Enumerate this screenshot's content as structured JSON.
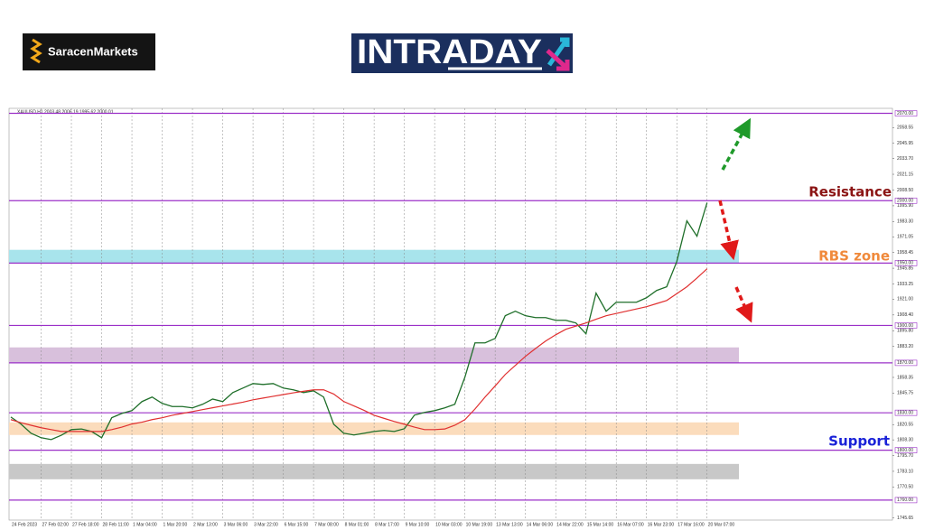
{
  "header": {
    "brand": "SaracenMarkets",
    "banner": "INTRADAY"
  },
  "chart_data": {
    "type": "line",
    "title": "XAUUSD,H1  2003.48 2006.19 1995.62 2000.01",
    "categories": [
      "24 Feb 2023",
      null,
      null,
      "27 Feb 02:00",
      null,
      null,
      "27 Feb 18:00",
      null,
      null,
      "28 Feb 11:00",
      null,
      null,
      "1 Mar 04:00",
      null,
      null,
      "1 Mar 20:00",
      null,
      null,
      "2 Mar 13:00",
      null,
      null,
      "3 Mar 06:00",
      null,
      null,
      "3 Mar 22:00",
      null,
      null,
      "6 Mar 15:00",
      null,
      null,
      "7 Mar 08:00",
      null,
      null,
      "8 Mar 01:00",
      null,
      null,
      "8 Mar 17:00",
      null,
      null,
      "9 Mar 10:00",
      null,
      null,
      "10 Mar 03:00",
      null,
      null,
      "10 Mar 19:00",
      null,
      null,
      "13 Mar 13:00",
      null,
      null,
      "14 Mar 06:00",
      null,
      null,
      "14 Mar 22:00",
      null,
      null,
      "15 Mar 14:00",
      null,
      null,
      "16 Mar 07:00",
      null,
      null,
      "16 Mar 23:00",
      null,
      null,
      "17 Mar 16:00",
      null,
      null,
      "20 Mar 07:00"
    ],
    "series": [
      {
        "color": "#1f6f2a",
        "values": [
          1826.6,
          1821,
          1813.6,
          1810,
          1808.5,
          1812,
          1816.5,
          1817,
          1815,
          1810,
          1826,
          1829.5,
          1831.7,
          1839,
          1842.6,
          1837.5,
          1835,
          1835,
          1833.9,
          1836.8,
          1841,
          1839,
          1846.2,
          1849.8,
          1853.4,
          1852.7,
          1853.4,
          1849.8,
          1848.4,
          1846.2,
          1847.6,
          1842.6,
          1820.8,
          1813.6,
          1812.2,
          1813.6,
          1815,
          1815.8,
          1815,
          1817.2,
          1828.1,
          1830.3,
          1831.7,
          1833.9,
          1836.8,
          1858.5,
          1886,
          1886,
          1889.6,
          1907.8,
          1911.4,
          1907.8,
          1906.3,
          1906.3,
          1904.1,
          1904.1,
          1902,
          1893.3,
          1925.9,
          1911.4,
          1918.6,
          1918.6,
          1918.6,
          1922.2,
          1928,
          1931,
          1951.2,
          1983.8,
          1971.5,
          1998.3
        ]
      },
      {
        "color": "#e03030",
        "values": [
          1824.5,
          1822,
          1820,
          1818,
          1816.5,
          1815,
          1815,
          1815,
          1815,
          1815,
          1816.5,
          1818.5,
          1821,
          1822.5,
          1824.5,
          1826,
          1828,
          1829.5,
          1831,
          1832.5,
          1834,
          1835.5,
          1837,
          1838.5,
          1840.4,
          1841.8,
          1843.2,
          1844.6,
          1846,
          1847.2,
          1848.4,
          1848.4,
          1845,
          1839,
          1835.5,
          1832,
          1828,
          1825.5,
          1823,
          1820.8,
          1818.5,
          1816.5,
          1816.5,
          1817,
          1820,
          1824.5,
          1833,
          1842.6,
          1851.5,
          1860.7,
          1868,
          1875.2,
          1881.5,
          1887.5,
          1892.5,
          1896.9,
          1899.5,
          1902,
          1905,
          1907.8,
          1909.6,
          1911.4,
          1913.2,
          1915,
          1917.5,
          1920,
          1925.5,
          1931,
          1938,
          1945.4
        ]
      }
    ],
    "ylim": [
      1744,
      2074
    ],
    "yticks": [
      2058.55,
      2045.95,
      {
        "value": 2033.7,
        "label": "2033.70"
      },
      2021.15,
      {
        "value": 2008.5,
        "label": "2008.50"
      },
      {
        "value": 1995.9,
        "label": "1995.90"
      },
      {
        "value": 1983.3,
        "label": "1983.30"
      },
      1971.05,
      1958.45,
      1945.85,
      1933.25,
      {
        "value": 1921,
        "label": "1921.00"
      },
      {
        "value": 1908.4,
        "label": "1908.40"
      },
      {
        "value": 1895.8,
        "label": "1895.80"
      },
      {
        "value": 1883.2,
        "label": "1883.20"
      },
      1858.35,
      1845.75,
      1820.55,
      {
        "value": 1808.3,
        "label": "1808.30"
      },
      {
        "value": 1795.7,
        "label": "1795.70"
      },
      {
        "value": 1783.1,
        "label": "1783.10"
      },
      {
        "value": 1770.5,
        "label": "1770.50"
      },
      1745.65
    ],
    "levels": [
      {
        "value": 2070,
        "label": "2070.00"
      },
      {
        "value": 2000,
        "label": "2000.00"
      },
      {
        "value": 1950,
        "label": "1950.00"
      },
      {
        "value": 1900,
        "label": "1900.00"
      },
      {
        "value": 1870,
        "label": "1870.00"
      },
      {
        "value": 1830,
        "label": "1830.00"
      },
      {
        "value": 1800,
        "label": "1800.00"
      },
      {
        "value": 1760,
        "label": "1760.00"
      }
    ],
    "level_color": "#9b30c8",
    "zones": [
      {
        "from": 1950,
        "to": 1960.6,
        "color": "#a8e4ec"
      },
      {
        "from": 1870,
        "to": 1882.4,
        "color": "#d8c0dc"
      },
      {
        "from": 1812.2,
        "to": 1822.3,
        "color": "#fbdcbc"
      },
      {
        "from": 1776.7,
        "to": 1789,
        "color": "#c8c8c8"
      }
    ],
    "annotations": [
      "Resistance",
      "RBS zone",
      "Support"
    ]
  }
}
